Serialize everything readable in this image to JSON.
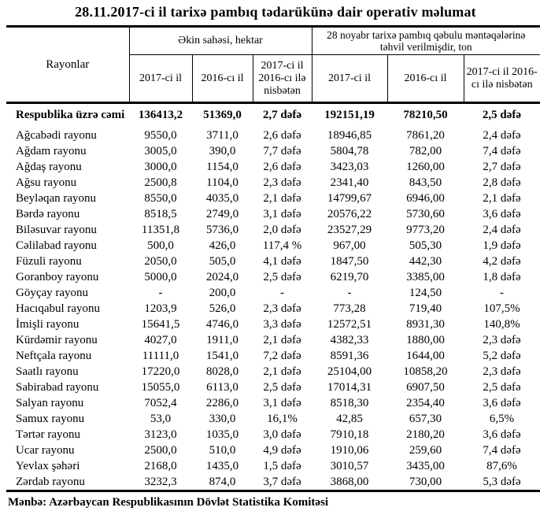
{
  "page": {
    "title": "28.11.2017-ci il tarixə pambıq tədarükünə dair operativ məlumat",
    "source_note": "Mənbə: Azərbaycan Respublikasının Dövlət Statistika Komitəsi"
  },
  "table": {
    "header": {
      "region_col": "Rayonlar",
      "group1_label": "Əkin sahəsi, hektar",
      "group2_label": "28 noyabr tarixə pambıq qəbulu məntəqələrinə təhvil verilmişdir, ton",
      "sub_labels": [
        "2017-ci il",
        "2016-cı il",
        "2017-ci il 2016-cı ilə nisbətən",
        "2017-ci il",
        "2016-cı il",
        "2017-ci il 2016-cı ilə nisbətən"
      ]
    },
    "total": {
      "region": "Respublika üzrə cəmi",
      "values": [
        "136413,2",
        "51369,0",
        "2,7 dəfə",
        "192151,19",
        "78210,50",
        "2,5 dəfə"
      ]
    },
    "rows": [
      {
        "region": "Ağcabədi rayonu",
        "values": [
          "9550,0",
          "3711,0",
          "2,6 dəfə",
          "18946,85",
          "7861,20",
          "2,4 dəfə"
        ]
      },
      {
        "region": "Ağdam rayonu",
        "values": [
          "3005,0",
          "390,0",
          "7,7 dəfə",
          "5804,78",
          "782,00",
          "7,4 dəfə"
        ]
      },
      {
        "region": "Ağdaş rayonu",
        "values": [
          "3000,0",
          "1154,0",
          "2,6 dəfə",
          "3423,03",
          "1260,00",
          "2,7 dəfə"
        ]
      },
      {
        "region": "Ağsu rayonu",
        "values": [
          "2500,8",
          "1104,0",
          "2,3 dəfə",
          "2341,40",
          "843,50",
          "2,8 dəfə"
        ]
      },
      {
        "region": "Beyləqan rayonu",
        "values": [
          "8550,0",
          "4035,0",
          "2,1 dəfə",
          "14799,67",
          "6946,00",
          "2,1 dəfə"
        ]
      },
      {
        "region": "Bərdə rayonu",
        "values": [
          "8518,5",
          "2749,0",
          "3,1 dəfə",
          "20576,22",
          "5730,60",
          "3,6 dəfə"
        ]
      },
      {
        "region": "Biləsuvar rayonu",
        "values": [
          "11351,8",
          "5736,0",
          "2,0 dəfə",
          "23527,29",
          "9773,20",
          "2,4 dəfə"
        ]
      },
      {
        "region": "Cəlilabad rayonu",
        "values": [
          "500,0",
          "426,0",
          "117,4 %",
          "967,00",
          "505,30",
          "1,9 dəfə"
        ]
      },
      {
        "region": "Füzuli rayonu",
        "values": [
          "2050,0",
          "505,0",
          "4,1 dəfə",
          "1847,50",
          "442,30",
          "4,2 dəfə"
        ]
      },
      {
        "region": "Goranboy rayonu",
        "values": [
          "5000,0",
          "2024,0",
          "2,5 dəfə",
          "6219,70",
          "3385,00",
          "1,8 dəfə"
        ]
      },
      {
        "region": "Göyçay rayonu",
        "values": [
          "-",
          "200,0",
          "-",
          "-",
          "124,50",
          "-"
        ]
      },
      {
        "region": "Hacıqabul rayonu",
        "values": [
          "1203,9",
          "526,0",
          "2,3 dəfə",
          "773,28",
          "719,40",
          "107,5%"
        ]
      },
      {
        "region": "İmişli rayonu",
        "values": [
          "15641,5",
          "4746,0",
          "3,3 dəfə",
          "12572,51",
          "8931,30",
          "140,8%"
        ]
      },
      {
        "region": "Kürdəmir rayonu",
        "values": [
          "4027,0",
          "1911,0",
          "2,1 dəfə",
          "4382,33",
          "1880,00",
          "2,3 dəfə"
        ]
      },
      {
        "region": "Neftçala rayonu",
        "values": [
          "11111,0",
          "1541,0",
          "7,2 dəfə",
          "8591,36",
          "1644,00",
          "5,2 dəfə"
        ]
      },
      {
        "region": "Saatlı rayonu",
        "values": [
          "17220,0",
          "8028,0",
          "2,1 dəfə",
          "25104,00",
          "10858,20",
          "2,3 dəfə"
        ]
      },
      {
        "region": "Sabirabad rayonu",
        "values": [
          "15055,0",
          "6113,0",
          "2,5 dəfə",
          "17014,31",
          "6907,50",
          "2,5 dəfə"
        ]
      },
      {
        "region": "Salyan rayonu",
        "values": [
          "7052,4",
          "2286,0",
          "3,1 dəfə",
          "8518,30",
          "2354,40",
          "3,6 dəfə"
        ]
      },
      {
        "region": "Samux rayonu",
        "values": [
          "53,0",
          "330,0",
          "16,1%",
          "42,85",
          "657,30",
          "6,5%"
        ]
      },
      {
        "region": "Tərtər rayonu",
        "values": [
          "3123,0",
          "1035,0",
          "3,0 dəfə",
          "7910,18",
          "2180,20",
          "3,6 dəfə"
        ]
      },
      {
        "region": "Ucar rayonu",
        "values": [
          "2500,0",
          "510,0",
          "4,9 dəfə",
          "1910,06",
          "259,60",
          "7,4 dəfə"
        ]
      },
      {
        "region": "Yevlax şəhəri",
        "values": [
          "2168,0",
          "1435,0",
          "1,5 dəfə",
          "3010,57",
          "3435,00",
          "87,6%"
        ]
      },
      {
        "region": "Zərdab rayonu",
        "values": [
          "3232,3",
          "874,0",
          "3,7 dəfə",
          "3868,00",
          "730,00",
          "5,3 dəfə"
        ]
      }
    ]
  }
}
